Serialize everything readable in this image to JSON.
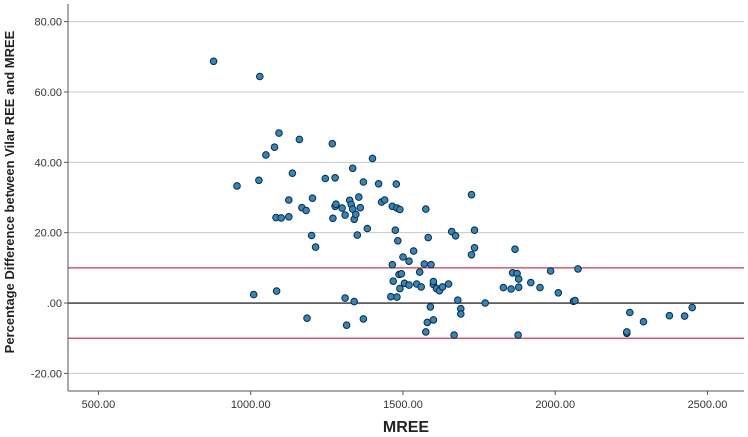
{
  "chart_data": {
    "type": "scatter",
    "xlabel": "MREE",
    "ylabel": "Percentage Difference between Vilar REE and MREE",
    "xlim": [
      400,
      2620
    ],
    "ylim": [
      -25,
      85
    ],
    "x_ticks": [
      500,
      1000,
      1500,
      2000,
      2500
    ],
    "x_tick_labels": [
      "500.00",
      "1000.00",
      "1500.00",
      "2000.00",
      "2500.00"
    ],
    "y_ticks": [
      80,
      60,
      40,
      20,
      0,
      -20
    ],
    "y_tick_labels": [
      "80.00",
      "60.00",
      "40.00",
      "20.00",
      ".00",
      "-20.00"
    ],
    "grid": "horizontal",
    "reference_lines": [
      {
        "y": 10,
        "color": "#d6344f"
      },
      {
        "y": 0,
        "color": "#000000"
      },
      {
        "y": -10,
        "color": "#d6344f"
      }
    ],
    "colors": {
      "point_fill": "#2f86c0",
      "point_stroke": "#0e2a3d",
      "grid": "#c8c8c8",
      "axis": "#555555"
    },
    "points": [
      [
        878,
        68.7
      ],
      [
        1030,
        64.4
      ],
      [
        955,
        33.3
      ],
      [
        1027,
        34.9
      ],
      [
        1050,
        42.1
      ],
      [
        1078,
        44.3
      ],
      [
        1093,
        48.3
      ],
      [
        1160,
        46.5
      ],
      [
        1268,
        45.3
      ],
      [
        1335,
        38.3
      ],
      [
        1400,
        41.1
      ],
      [
        1125,
        29.3
      ],
      [
        1137,
        36.9
      ],
      [
        1203,
        29.8
      ],
      [
        1245,
        35.4
      ],
      [
        1277,
        35.6
      ],
      [
        1370,
        34.4
      ],
      [
        1420,
        33.9
      ],
      [
        1478,
        33.8
      ],
      [
        1083,
        24.3
      ],
      [
        1100,
        24.2
      ],
      [
        1125,
        24.5
      ],
      [
        1168,
        27.1
      ],
      [
        1182,
        26.3
      ],
      [
        1200,
        19.2
      ],
      [
        1213,
        15.9
      ],
      [
        1270,
        24.1
      ],
      [
        1277,
        27.5
      ],
      [
        1280,
        28.1
      ],
      [
        1300,
        27.0
      ],
      [
        1310,
        25.0
      ],
      [
        1325,
        29.2
      ],
      [
        1330,
        28.0
      ],
      [
        1335,
        26.7
      ],
      [
        1340,
        23.8
      ],
      [
        1345,
        25.2
      ],
      [
        1350,
        19.3
      ],
      [
        1355,
        30.1
      ],
      [
        1360,
        27.1
      ],
      [
        1383,
        21.2
      ],
      [
        1430,
        28.7
      ],
      [
        1440,
        29.3
      ],
      [
        1465,
        27.5
      ],
      [
        1480,
        27.0
      ],
      [
        1490,
        26.6
      ],
      [
        1475,
        20.7
      ],
      [
        1483,
        17.7
      ],
      [
        1500,
        13.1
      ],
      [
        1575,
        26.7
      ],
      [
        1583,
        18.6
      ],
      [
        1660,
        20.3
      ],
      [
        1673,
        19.1
      ],
      [
        1725,
        30.8
      ],
      [
        1735,
        20.7
      ],
      [
        1735,
        15.7
      ],
      [
        1725,
        13.7
      ],
      [
        1868,
        15.3
      ],
      [
        1465,
        10.9
      ],
      [
        1487,
        8.1
      ],
      [
        1495,
        8.3
      ],
      [
        1505,
        5.6
      ],
      [
        1520,
        11.9
      ],
      [
        1535,
        14.8
      ],
      [
        1545,
        5.4
      ],
      [
        1555,
        8.8
      ],
      [
        1570,
        11.1
      ],
      [
        1592,
        10.9
      ],
      [
        1600,
        5.3
      ],
      [
        1610,
        4.1
      ],
      [
        1620,
        3.5
      ],
      [
        1650,
        5.4
      ],
      [
        1468,
        6.2
      ],
      [
        1480,
        1.7
      ],
      [
        1460,
        1.8
      ],
      [
        1490,
        4.1
      ],
      [
        1520,
        5.1
      ],
      [
        1560,
        4.6
      ],
      [
        1600,
        6.1
      ],
      [
        1630,
        4.6
      ],
      [
        1680,
        0.8
      ],
      [
        1690,
        -1.6
      ],
      [
        1690,
        -3.1
      ],
      [
        1590,
        -1.1
      ],
      [
        1580,
        -5.5
      ],
      [
        1600,
        -4.8
      ],
      [
        1575,
        -8.2
      ],
      [
        1668,
        -9.1
      ],
      [
        1010,
        2.4
      ],
      [
        1085,
        3.4
      ],
      [
        1185,
        -4.3
      ],
      [
        1310,
        1.4
      ],
      [
        1315,
        -6.3
      ],
      [
        1340,
        0.4
      ],
      [
        1370,
        -4.5
      ],
      [
        1770,
        0.0
      ],
      [
        1830,
        4.4
      ],
      [
        1855,
        4.0
      ],
      [
        1860,
        8.6
      ],
      [
        1875,
        8.4
      ],
      [
        1880,
        6.8
      ],
      [
        1880,
        4.5
      ],
      [
        1920,
        5.8
      ],
      [
        1950,
        4.4
      ],
      [
        1985,
        9.1
      ],
      [
        2010,
        2.9
      ],
      [
        2060,
        0.5
      ],
      [
        2065,
        0.7
      ],
      [
        2075,
        9.7
      ],
      [
        1878,
        -9.1
      ],
      [
        2235,
        -8.6
      ],
      [
        2235,
        -8.2
      ],
      [
        2245,
        -2.7
      ],
      [
        2290,
        -5.3
      ],
      [
        2375,
        -3.6
      ],
      [
        2425,
        -3.7
      ],
      [
        2450,
        -1.3
      ]
    ]
  }
}
